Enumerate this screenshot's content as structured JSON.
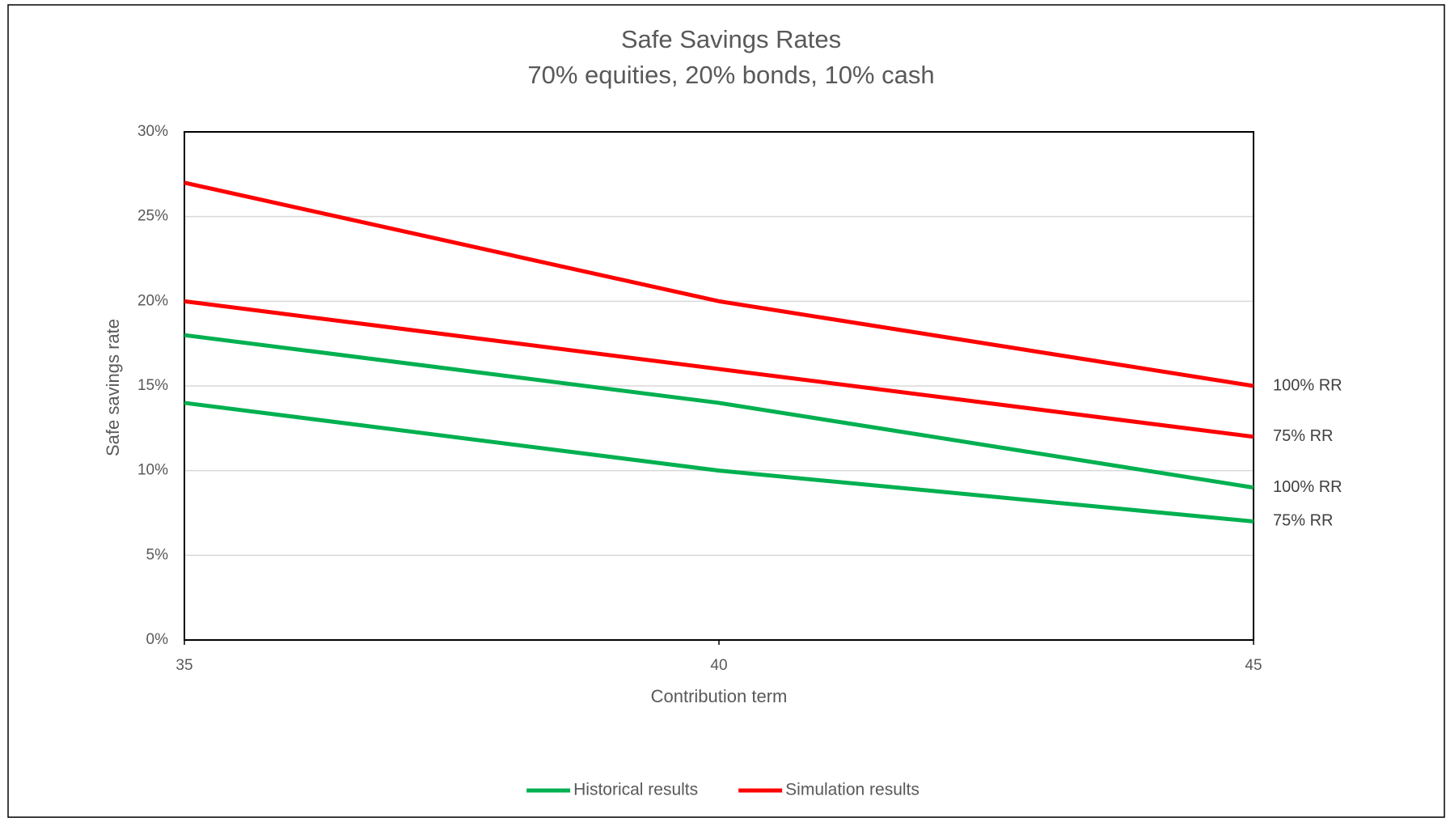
{
  "chart_data": {
    "type": "line",
    "title": "Safe Savings Rates",
    "subtitle": "70% equities, 20% bonds, 10% cash",
    "x_label": "Contribution term",
    "y_label": "Safe savings rate",
    "x": [
      35,
      40,
      45
    ],
    "series": [
      {
        "name": "Historical results",
        "end_label": "100% RR",
        "color": "#00b050",
        "values": [
          18,
          14,
          9
        ]
      },
      {
        "name": "Historical results",
        "end_label": "75% RR",
        "color": "#00b050",
        "values": [
          14,
          10,
          7
        ]
      },
      {
        "name": "Simulation results",
        "end_label": "100% RR",
        "color": "#ff0000",
        "values": [
          27,
          20,
          15
        ]
      },
      {
        "name": "Simulation results",
        "end_label": "75% RR",
        "color": "#ff0000",
        "values": [
          20,
          16,
          12
        ]
      }
    ],
    "xlim": [
      35,
      45
    ],
    "xticks": [
      35,
      40,
      45
    ],
    "ylim": [
      0,
      30
    ],
    "yticks": [
      {
        "value": 0,
        "label": "0%"
      },
      {
        "value": 5,
        "label": "5%"
      },
      {
        "value": 10,
        "label": "10%"
      },
      {
        "value": 15,
        "label": "15%"
      },
      {
        "value": 20,
        "label": "20%"
      },
      {
        "value": 25,
        "label": "25%"
      },
      {
        "value": 30,
        "label": "30%"
      }
    ],
    "grid": true,
    "legend": "bottom"
  }
}
